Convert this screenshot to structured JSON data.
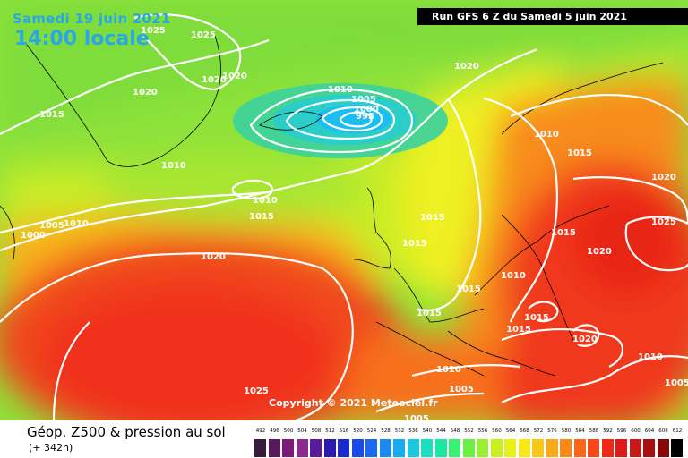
{
  "header": {
    "date": "Samedi 19 juin 2021",
    "time": "14:00 locale",
    "run": "Run GFS 6 Z du Samedi 5 juin 2021"
  },
  "copyright": "Copyright © 2021 Meteociel.fr",
  "footer": {
    "title": "Géop. Z500 & pression au sol",
    "lead": "(+ 342h)"
  },
  "legend": {
    "ticks": [
      "492",
      "496",
      "500",
      "504",
      "508",
      "512",
      "516",
      "520",
      "524",
      "528",
      "532",
      "536",
      "540",
      "544",
      "548",
      "552",
      "556",
      "560",
      "564",
      "568",
      "572",
      "576",
      "580",
      "584",
      "588",
      "592",
      "596",
      "600",
      "604",
      "608",
      "612"
    ],
    "colors": [
      "#3a1a3a",
      "#5a1a5a",
      "#7a1a7a",
      "#8a2a8a",
      "#5a1a9a",
      "#2a1ab0",
      "#1a2ad0",
      "#1a4ae8",
      "#1a6af0",
      "#1a8af0",
      "#1aaaf0",
      "#1ac8e0",
      "#1ae0c0",
      "#1ae8a0",
      "#3af070",
      "#6af040",
      "#9af030",
      "#c8f020",
      "#e8f018",
      "#f8e818",
      "#f8c818",
      "#f8a818",
      "#f88818",
      "#f86818",
      "#f84818",
      "#f02818",
      "#e01818",
      "#c81818",
      "#a81010",
      "#880808",
      "#000000"
    ]
  },
  "isobars": [
    {
      "text": "1025"
    },
    {
      "text": "1025"
    },
    {
      "text": "1020"
    },
    {
      "text": "1020"
    },
    {
      "text": "1020"
    },
    {
      "text": "1015"
    },
    {
      "text": "1010"
    },
    {
      "text": "1005"
    },
    {
      "text": "1000"
    },
    {
      "text": "995"
    },
    {
      "text": "1020"
    },
    {
      "text": "1010"
    },
    {
      "text": "1010"
    },
    {
      "text": "1015"
    },
    {
      "text": "1015"
    },
    {
      "text": "1015"
    },
    {
      "text": "1005"
    },
    {
      "text": "1010"
    },
    {
      "text": "1000"
    },
    {
      "text": "1020"
    },
    {
      "text": "1015"
    },
    {
      "text": "1015"
    },
    {
      "text": "1010"
    },
    {
      "text": "1015"
    },
    {
      "text": "1015"
    },
    {
      "text": "1015"
    },
    {
      "text": "1015"
    },
    {
      "text": "1020"
    },
    {
      "text": "1020"
    },
    {
      "text": "1025"
    },
    {
      "text": "1020"
    },
    {
      "text": "1010"
    },
    {
      "text": "1010"
    },
    {
      "text": "1005"
    },
    {
      "text": "1005"
    },
    {
      "text": "1025"
    },
    {
      "text": "1005"
    }
  ]
}
